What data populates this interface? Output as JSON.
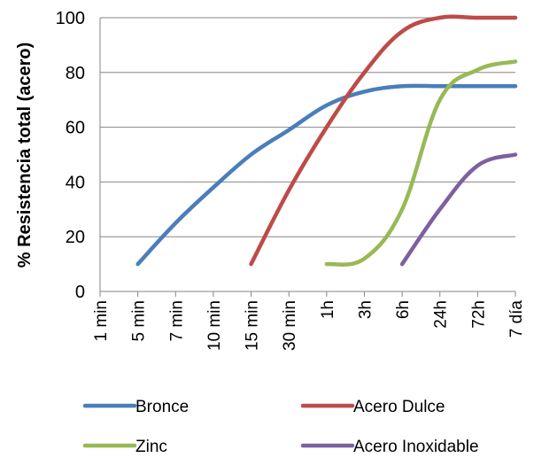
{
  "chart_data": {
    "type": "line",
    "ylabel": "% Resistencia total (acero)",
    "ylim": [
      0,
      100
    ],
    "yticks": [
      0,
      20,
      40,
      60,
      80,
      100
    ],
    "categories": [
      "1 min",
      "5 min",
      "7 min",
      "10 min",
      "15 min",
      "30 min",
      "1h",
      "3h",
      "6h",
      "24h",
      "72h",
      "7 día"
    ],
    "grid": true,
    "legend_position": "bottom",
    "series": [
      {
        "name": "Bronce",
        "color": "#4a7ebb",
        "points": [
          [
            "5 min",
            10
          ],
          [
            "7 min",
            25
          ],
          [
            "10 min",
            38
          ],
          [
            "15 min",
            50
          ],
          [
            "30 min",
            59
          ],
          [
            "1h",
            68
          ],
          [
            "3h",
            73
          ],
          [
            "6h",
            75
          ],
          [
            "24h",
            75
          ],
          [
            "72h",
            75
          ],
          [
            "7 día",
            75
          ]
        ]
      },
      {
        "name": "Acero Dulce",
        "color": "#be4b48",
        "points": [
          [
            "15 min",
            10
          ],
          [
            "30 min",
            37
          ],
          [
            "1h",
            60
          ],
          [
            "3h",
            80
          ],
          [
            "6h",
            95
          ],
          [
            "24h",
            100
          ],
          [
            "72h",
            100
          ],
          [
            "7 día",
            100
          ]
        ]
      },
      {
        "name": "Zinc",
        "color": "#98b954",
        "points": [
          [
            "1h",
            10
          ],
          [
            "3h",
            12
          ],
          [
            "6h",
            30
          ],
          [
            "24h",
            70
          ],
          [
            "72h",
            81
          ],
          [
            "7 día",
            84
          ]
        ]
      },
      {
        "name": "Acero Inoxidable",
        "color": "#7d60a0",
        "points": [
          [
            "6h",
            10
          ],
          [
            "24h",
            30
          ],
          [
            "72h",
            46
          ],
          [
            "7 día",
            50
          ]
        ]
      }
    ]
  }
}
